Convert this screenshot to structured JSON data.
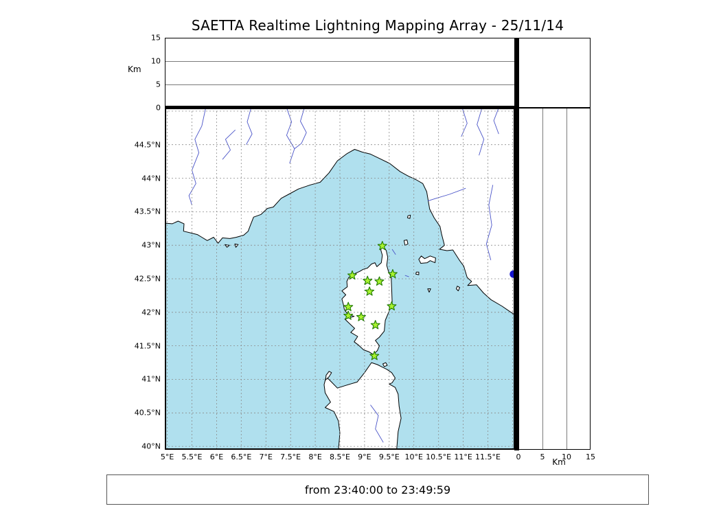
{
  "title": "SAETTA Realtime Lightning Mapping Array - 25/11/14",
  "footer": {
    "time_range": "from 23:40:00 to 23:49:59"
  },
  "axes": {
    "km_label": "Km",
    "grid_step": 0.5,
    "altitude": {
      "range": [
        0,
        15
      ],
      "ticks": [
        {
          "value": 0,
          "label": "0"
        },
        {
          "value": 5,
          "label": "5"
        },
        {
          "value": 10,
          "label": "10"
        },
        {
          "value": 15,
          "label": "15"
        }
      ]
    },
    "latitude": {
      "range": [
        39.95,
        45.05
      ],
      "ticks": [
        {
          "value": 40,
          "label": "40°N"
        },
        {
          "value": 40.5,
          "label": "40.5°N"
        },
        {
          "value": 41,
          "label": "41°N"
        },
        {
          "value": 41.5,
          "label": "41.5°N"
        },
        {
          "value": 42,
          "label": "42°N"
        },
        {
          "value": 42.5,
          "label": "42.5°N"
        },
        {
          "value": 43,
          "label": "43°N"
        },
        {
          "value": 43.5,
          "label": "43.5°N"
        },
        {
          "value": 44,
          "label": "44°N"
        },
        {
          "value": 44.5,
          "label": "44.5°N"
        }
      ]
    },
    "longitude": {
      "range": [
        4.95,
        12.05
      ],
      "ticks": [
        {
          "value": 5,
          "label": "5°E"
        },
        {
          "value": 5.5,
          "label": "5.5°E"
        },
        {
          "value": 6,
          "label": "6°E"
        },
        {
          "value": 6.5,
          "label": "6.5°E"
        },
        {
          "value": 7,
          "label": "7°E"
        },
        {
          "value": 7.5,
          "label": "7.5°E"
        },
        {
          "value": 8,
          "label": "8°E"
        },
        {
          "value": 8.5,
          "label": "8.5°E"
        },
        {
          "value": 9,
          "label": "9°E"
        },
        {
          "value": 9.5,
          "label": "9.5°E"
        },
        {
          "value": 10,
          "label": "10°E"
        },
        {
          "value": 10.5,
          "label": "10.5°E"
        },
        {
          "value": 11,
          "label": "11°E"
        },
        {
          "value": 11.5,
          "label": "11.5°E"
        }
      ]
    }
  },
  "style": {
    "sea": "#b0e0ee",
    "land": "#ffffff",
    "coast": "#000000",
    "river": "#4953c8",
    "grid": "#8a8a8a",
    "station_fill": "#a8f22f",
    "station_edge": "#1f7a00",
    "point_blue": "#1414cc",
    "panel_gridline": "#7a7a7a"
  },
  "chart_data": {
    "type": "scatter",
    "title": "SAETTA Realtime Lightning Mapping Array - 25/11/14",
    "time_window": "from 23:40:00 to 23:49:59",
    "panels": {
      "top": {
        "name": "altitude vs longitude",
        "ylabel": "Km",
        "ylim": [
          0,
          15
        ],
        "yticks": [
          0,
          5,
          10,
          15
        ],
        "grid": "horizontal lines at 5 and 10 km",
        "points": []
      },
      "main": {
        "name": "plan-view map",
        "xlim": [
          4.95,
          12.05
        ],
        "ylim": [
          39.95,
          45.05
        ],
        "xticks": [
          5,
          5.5,
          6,
          6.5,
          7,
          7.5,
          8,
          8.5,
          9,
          9.5,
          10,
          10.5,
          11,
          11.5
        ],
        "yticks": [
          40,
          40.5,
          41,
          41.5,
          42,
          42.5,
          43,
          43.5,
          44,
          44.5
        ],
        "grid": "dashed every 0.5 degree"
      },
      "right": {
        "name": "altitude vs latitude",
        "xlabel": "Km",
        "xlim": [
          0,
          15
        ],
        "xticks": [
          0,
          5,
          10,
          15
        ],
        "grid": "vertical lines at 5 and 10 km",
        "points": []
      },
      "top_right": {
        "name": "altitude histogram",
        "points": []
      }
    },
    "lightning_sources": [],
    "stations": [
      {
        "lon": 9.36,
        "lat": 42.99
      },
      {
        "lon": 8.75,
        "lat": 42.55
      },
      {
        "lon": 9.06,
        "lat": 42.47
      },
      {
        "lon": 9.3,
        "lat": 42.46
      },
      {
        "lon": 9.57,
        "lat": 42.57
      },
      {
        "lon": 9.1,
        "lat": 42.31
      },
      {
        "lon": 8.67,
        "lat": 42.08
      },
      {
        "lon": 9.55,
        "lat": 42.09
      },
      {
        "lon": 8.67,
        "lat": 41.95
      },
      {
        "lon": 8.93,
        "lat": 41.93
      },
      {
        "lon": 9.22,
        "lat": 41.81
      },
      {
        "lon": 9.2,
        "lat": 41.35
      }
    ],
    "extra_points": [
      {
        "lon": 12.02,
        "lat": 42.57,
        "color": "#1414cc",
        "marker": "circle"
      }
    ]
  },
  "map_geometry": {
    "mainland_coast": [
      [
        4.95,
        43.33
      ],
      [
        5.1,
        43.32
      ],
      [
        5.22,
        43.36
      ],
      [
        5.34,
        43.32
      ],
      [
        5.33,
        43.21
      ],
      [
        5.5,
        43.18
      ],
      [
        5.61,
        43.16
      ],
      [
        5.7,
        43.12
      ],
      [
        5.81,
        43.07
      ],
      [
        5.94,
        43.12
      ],
      [
        6.03,
        43.03
      ],
      [
        6.12,
        43.11
      ],
      [
        6.27,
        43.1
      ],
      [
        6.4,
        43.12
      ],
      [
        6.55,
        43.15
      ],
      [
        6.64,
        43.21
      ],
      [
        6.68,
        43.29
      ],
      [
        6.75,
        43.42
      ],
      [
        6.9,
        43.46
      ],
      [
        7.03,
        43.55
      ],
      [
        7.15,
        43.57
      ],
      [
        7.31,
        43.7
      ],
      [
        7.46,
        43.76
      ],
      [
        7.66,
        43.84
      ],
      [
        7.9,
        43.9
      ],
      [
        8.1,
        43.94
      ],
      [
        8.28,
        44.08
      ],
      [
        8.45,
        44.26
      ],
      [
        8.65,
        44.37
      ],
      [
        8.8,
        44.43
      ],
      [
        8.95,
        44.39
      ],
      [
        9.12,
        44.36
      ],
      [
        9.26,
        44.31
      ],
      [
        9.51,
        44.22
      ],
      [
        9.72,
        44.1
      ],
      [
        9.89,
        44.03
      ],
      [
        10.04,
        43.98
      ],
      [
        10.18,
        43.92
      ],
      [
        10.26,
        43.8
      ],
      [
        10.32,
        43.54
      ],
      [
        10.41,
        43.41
      ],
      [
        10.53,
        43.28
      ],
      [
        10.56,
        43.17
      ],
      [
        10.62,
        43.0
      ],
      [
        10.52,
        42.94
      ],
      [
        10.67,
        42.92
      ],
      [
        10.79,
        42.93
      ],
      [
        10.93,
        42.77
      ],
      [
        11.01,
        42.69
      ],
      [
        11.08,
        42.52
      ],
      [
        11.17,
        42.46
      ],
      [
        11.09,
        42.4
      ],
      [
        11.27,
        42.41
      ],
      [
        11.41,
        42.29
      ],
      [
        11.56,
        42.19
      ],
      [
        11.79,
        42.09
      ],
      [
        11.93,
        42.02
      ],
      [
        12.05,
        41.96
      ]
    ],
    "corsica": [
      [
        9.36,
        43.01
      ],
      [
        9.44,
        42.92
      ],
      [
        9.47,
        42.82
      ],
      [
        9.45,
        42.7
      ],
      [
        9.48,
        42.62
      ],
      [
        9.54,
        42.52
      ],
      [
        9.55,
        42.35
      ],
      [
        9.56,
        42.15
      ],
      [
        9.5,
        42.02
      ],
      [
        9.42,
        41.88
      ],
      [
        9.4,
        41.72
      ],
      [
        9.3,
        41.63
      ],
      [
        9.22,
        41.58
      ],
      [
        9.3,
        41.5
      ],
      [
        9.26,
        41.43
      ],
      [
        9.18,
        41.37
      ],
      [
        9.09,
        41.41
      ],
      [
        8.98,
        41.44
      ],
      [
        8.88,
        41.51
      ],
      [
        8.79,
        41.56
      ],
      [
        8.86,
        41.64
      ],
      [
        8.72,
        41.7
      ],
      [
        8.8,
        41.76
      ],
      [
        8.67,
        41.85
      ],
      [
        8.6,
        41.9
      ],
      [
        8.79,
        41.94
      ],
      [
        8.66,
        41.97
      ],
      [
        8.59,
        42.04
      ],
      [
        8.57,
        42.12
      ],
      [
        8.54,
        42.2
      ],
      [
        8.62,
        42.26
      ],
      [
        8.54,
        42.32
      ],
      [
        8.65,
        42.38
      ],
      [
        8.64,
        42.46
      ],
      [
        8.68,
        42.52
      ],
      [
        8.78,
        42.57
      ],
      [
        8.9,
        42.61
      ],
      [
        8.97,
        42.64
      ],
      [
        9.06,
        42.66
      ],
      [
        9.14,
        42.72
      ],
      [
        9.21,
        42.74
      ],
      [
        9.25,
        42.68
      ],
      [
        9.34,
        42.74
      ],
      [
        9.36,
        42.85
      ],
      [
        9.33,
        42.93
      ]
    ],
    "sardinia": [
      [
        8.47,
        39.94
      ],
      [
        8.5,
        40.2
      ],
      [
        8.47,
        40.38
      ],
      [
        8.38,
        40.52
      ],
      [
        8.2,
        40.58
      ],
      [
        8.31,
        40.66
      ],
      [
        8.2,
        40.8
      ],
      [
        8.18,
        40.92
      ],
      [
        8.22,
        41.04
      ],
      [
        8.33,
        40.96
      ],
      [
        8.45,
        40.87
      ],
      [
        8.58,
        40.9
      ],
      [
        8.71,
        40.93
      ],
      [
        8.85,
        40.96
      ],
      [
        9.0,
        41.1
      ],
      [
        9.14,
        41.25
      ],
      [
        9.26,
        41.22
      ],
      [
        9.34,
        41.19
      ],
      [
        9.45,
        41.15
      ],
      [
        9.55,
        41.1
      ],
      [
        9.62,
        41.02
      ],
      [
        9.56,
        40.95
      ],
      [
        9.5,
        40.93
      ],
      [
        9.62,
        40.88
      ],
      [
        9.68,
        40.78
      ],
      [
        9.7,
        40.6
      ],
      [
        9.74,
        40.42
      ],
      [
        9.68,
        40.22
      ],
      [
        9.65,
        39.94
      ]
    ],
    "islands": [
      [
        [
          10.1,
          42.79
        ],
        [
          10.14,
          42.73
        ],
        [
          10.27,
          42.74
        ],
        [
          10.33,
          42.77
        ],
        [
          10.43,
          42.74
        ],
        [
          10.44,
          42.81
        ],
        [
          10.33,
          42.84
        ],
        [
          10.22,
          42.8
        ],
        [
          10.15,
          42.84
        ]
      ],
      [
        [
          9.8,
          43.07
        ],
        [
          9.86,
          43.08
        ],
        [
          9.88,
          43.02
        ],
        [
          9.82,
          43.0
        ]
      ],
      [
        [
          9.88,
          43.44
        ],
        [
          9.93,
          43.45
        ],
        [
          9.92,
          43.4
        ],
        [
          9.87,
          43.41
        ]
      ],
      [
        [
          10.05,
          42.6
        ],
        [
          10.1,
          42.6
        ],
        [
          10.1,
          42.56
        ],
        [
          10.04,
          42.57
        ]
      ],
      [
        [
          10.28,
          42.35
        ],
        [
          10.34,
          42.35
        ],
        [
          10.31,
          42.3
        ]
      ],
      [
        [
          10.88,
          42.39
        ],
        [
          10.93,
          42.37
        ],
        [
          10.9,
          42.32
        ],
        [
          10.86,
          42.35
        ]
      ],
      [
        [
          8.21,
          40.99
        ],
        [
          8.28,
          41.04
        ],
        [
          8.33,
          41.1
        ],
        [
          8.28,
          41.12
        ],
        [
          8.22,
          41.06
        ]
      ],
      [
        [
          9.37,
          41.23
        ],
        [
          9.43,
          41.25
        ],
        [
          9.46,
          41.21
        ],
        [
          9.4,
          41.19
        ]
      ],
      [
        [
          6.17,
          43.01
        ],
        [
          6.26,
          43.0
        ],
        [
          6.21,
          42.97
        ]
      ],
      [
        [
          6.37,
          43.02
        ],
        [
          6.44,
          43.01
        ],
        [
          6.39,
          42.97
        ]
      ]
    ],
    "rivers": [
      [
        [
          5.78,
          45.05
        ],
        [
          5.7,
          44.78
        ],
        [
          5.56,
          44.58
        ],
        [
          5.64,
          44.38
        ],
        [
          5.5,
          44.12
        ],
        [
          5.58,
          43.92
        ],
        [
          5.44,
          43.74
        ],
        [
          5.5,
          43.6
        ]
      ],
      [
        [
          6.38,
          44.72
        ],
        [
          6.18,
          44.58
        ],
        [
          6.28,
          44.42
        ],
        [
          6.12,
          44.28
        ]
      ],
      [
        [
          6.7,
          45.05
        ],
        [
          6.62,
          44.84
        ],
        [
          6.72,
          44.66
        ],
        [
          6.6,
          44.5
        ]
      ],
      [
        [
          7.42,
          45.05
        ],
        [
          7.52,
          44.84
        ],
        [
          7.42,
          44.64
        ],
        [
          7.58,
          44.44
        ],
        [
          7.48,
          44.22
        ]
      ],
      [
        [
          7.78,
          45.05
        ],
        [
          7.7,
          44.85
        ],
        [
          7.82,
          44.68
        ],
        [
          7.72,
          44.52
        ],
        [
          7.58,
          44.44
        ]
      ],
      [
        [
          11.05,
          43.85
        ],
        [
          10.72,
          43.76
        ],
        [
          10.45,
          43.7
        ],
        [
          10.28,
          43.66
        ]
      ],
      [
        [
          11.6,
          43.9
        ],
        [
          11.52,
          43.6
        ],
        [
          11.58,
          43.3
        ],
        [
          11.47,
          43.02
        ],
        [
          11.56,
          42.78
        ]
      ],
      [
        [
          10.98,
          45.05
        ],
        [
          11.08,
          44.82
        ],
        [
          10.96,
          44.62
        ]
      ],
      [
        [
          11.38,
          45.05
        ],
        [
          11.28,
          44.8
        ],
        [
          11.42,
          44.58
        ],
        [
          11.32,
          44.34
        ]
      ],
      [
        [
          11.72,
          45.05
        ],
        [
          11.62,
          44.86
        ],
        [
          11.72,
          44.66
        ]
      ],
      [
        [
          9.12,
          40.62
        ],
        [
          9.28,
          40.46
        ],
        [
          9.22,
          40.26
        ],
        [
          9.38,
          40.06
        ]
      ],
      [
        [
          9.56,
          42.94
        ],
        [
          9.63,
          42.86
        ]
      ],
      [
        [
          9.82,
          42.55
        ],
        [
          9.9,
          42.53
        ]
      ]
    ]
  }
}
